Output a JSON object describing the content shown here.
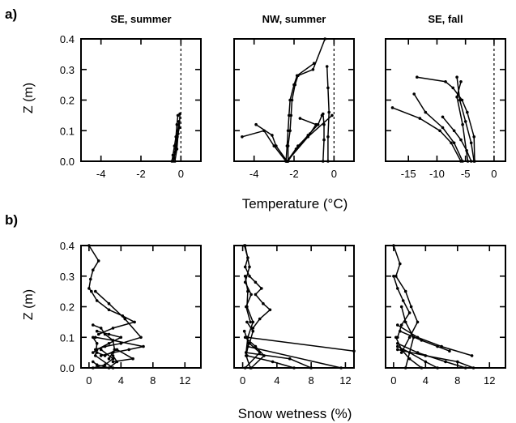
{
  "row_labels": [
    "a)",
    "b)"
  ],
  "y_axis_label": "Z (m)",
  "chart_data": [
    {
      "type": "line",
      "row": "a",
      "title": "SE, summer",
      "xlabel": "",
      "ylabel": "Z (m)",
      "xlim": [
        -5,
        1
      ],
      "ylim": [
        0,
        0.4
      ],
      "xticks": [
        -4,
        -2,
        0
      ],
      "yticks": [
        0.0,
        0.1,
        0.2,
        0.3,
        0.4
      ],
      "zero_line": true,
      "series": [
        {
          "x": [
            -0.45,
            -0.4,
            -0.32,
            -0.25,
            -0.2,
            -0.15
          ],
          "y": [
            0.0,
            0.02,
            0.05,
            0.08,
            0.12,
            0.15
          ]
        },
        {
          "x": [
            -0.38,
            -0.3,
            -0.22,
            -0.16,
            -0.1
          ],
          "y": [
            0.0,
            0.03,
            0.07,
            0.1,
            0.13
          ]
        },
        {
          "x": [
            -0.35,
            -0.25,
            -0.18,
            -0.08,
            -0.05
          ],
          "y": [
            0.01,
            0.04,
            0.08,
            0.11,
            0.155
          ]
        },
        {
          "x": [
            -0.3,
            -0.2,
            -0.14
          ],
          "y": [
            0.0,
            0.04,
            0.09
          ]
        }
      ]
    },
    {
      "type": "line",
      "row": "a",
      "title": "NW, summer",
      "xlabel": "",
      "ylabel": "",
      "xlim": [
        -5,
        1
      ],
      "ylim": [
        0,
        0.4
      ],
      "xticks": [
        -4,
        -2,
        0
      ],
      "yticks": [
        0.0,
        0.1,
        0.2,
        0.3,
        0.4
      ],
      "zero_line": true,
      "series": [
        {
          "x": [
            -2.3,
            -2.3,
            -2.2,
            -2.15,
            -2.1,
            -1.95,
            -1.8,
            -1.05,
            -0.45
          ],
          "y": [
            0.0,
            0.05,
            0.1,
            0.15,
            0.2,
            0.25,
            0.28,
            0.3,
            0.4
          ]
        },
        {
          "x": [
            -2.4,
            -2.35,
            -2.3,
            -2.25,
            -2.2,
            -2.0,
            -1.85,
            -1.0
          ],
          "y": [
            0.0,
            0.05,
            0.1,
            0.15,
            0.2,
            0.25,
            0.28,
            0.32
          ]
        },
        {
          "x": [
            -2.4,
            -3.0,
            -3.5,
            -4.6
          ],
          "y": [
            0.0,
            0.05,
            0.1,
            0.08
          ]
        },
        {
          "x": [
            -2.35,
            -2.9,
            -3.1,
            -3.9
          ],
          "y": [
            0.0,
            0.05,
            0.085,
            0.12
          ]
        },
        {
          "x": [
            -2.3,
            -1.9,
            -1.3,
            -0.8,
            -0.6
          ],
          "y": [
            0.0,
            0.04,
            0.085,
            0.12,
            0.15
          ]
        },
        {
          "x": [
            -2.35,
            -1.8,
            -1.2,
            -0.9,
            -1.7
          ],
          "y": [
            0.0,
            0.05,
            0.09,
            0.12,
            0.14
          ]
        },
        {
          "x": [
            -0.3,
            -0.3,
            -0.25,
            -0.3,
            -0.35
          ],
          "y": [
            0.0,
            0.08,
            0.16,
            0.24,
            0.31
          ]
        },
        {
          "x": [
            -0.55,
            -0.5,
            -0.5,
            -0.55
          ],
          "y": [
            0.0,
            0.07,
            0.12,
            0.155
          ]
        },
        {
          "x": [
            -2.35,
            -1.3,
            -0.1
          ],
          "y": [
            0.0,
            0.08,
            0.15
          ]
        }
      ]
    },
    {
      "type": "line",
      "row": "a",
      "title": "SE, fall",
      "xlabel": "",
      "ylabel": "",
      "xlim": [
        -19,
        2
      ],
      "ylim": [
        0,
        0.4
      ],
      "xticks": [
        -15,
        -10,
        -5,
        0
      ],
      "yticks": [
        0.0,
        0.1,
        0.2,
        0.3,
        0.4
      ],
      "zero_line": true,
      "series": [
        {
          "x": [
            -13.5,
            -8.5,
            -7.2,
            -5.6,
            -4.7,
            -3.5,
            -3.4
          ],
          "y": [
            0.275,
            0.26,
            0.24,
            0.2,
            0.16,
            0.08,
            0.0
          ]
        },
        {
          "x": [
            -14.0,
            -12.0,
            -9.0,
            -7.0,
            -5.5
          ],
          "y": [
            0.22,
            0.16,
            0.11,
            0.06,
            0.0
          ]
        },
        {
          "x": [
            -17.8,
            -13.0,
            -9.5,
            -7.5,
            -5.8
          ],
          "y": [
            0.175,
            0.14,
            0.1,
            0.06,
            0.0
          ]
        },
        {
          "x": [
            -9.0,
            -7.0,
            -5.8,
            -4.8,
            -4.0
          ],
          "y": [
            0.145,
            0.1,
            0.07,
            0.035,
            0.0
          ]
        },
        {
          "x": [
            -6.5,
            -6.0,
            -5.0,
            -4.0,
            -3.5
          ],
          "y": [
            0.275,
            0.2,
            0.13,
            0.06,
            0.0
          ]
        },
        {
          "x": [
            -5.8,
            -6.5,
            -5.5,
            -4.6
          ],
          "y": [
            0.26,
            0.21,
            0.12,
            0.0
          ]
        }
      ]
    },
    {
      "type": "line",
      "row": "b",
      "title": "",
      "xlabel": "",
      "ylabel": "Z (m)",
      "xlim": [
        -1,
        14
      ],
      "ylim": [
        0,
        0.4
      ],
      "xticks": [
        0,
        4,
        8,
        12
      ],
      "yticks": [
        0.0,
        0.1,
        0.2,
        0.3,
        0.4
      ],
      "zero_line": false,
      "series": [
        {
          "x": [
            0.0,
            1.2,
            0.5,
            0.2,
            0.0,
            0.3,
            1.0,
            2.5,
            4.2,
            5.7,
            3.0,
            1.2
          ],
          "y": [
            0.4,
            0.35,
            0.32,
            0.29,
            0.26,
            0.25,
            0.22,
            0.19,
            0.17,
            0.15,
            0.13,
            0.11
          ]
        },
        {
          "x": [
            0.8,
            2.5,
            4.5,
            6.5,
            4.0,
            2.0,
            0.8
          ],
          "y": [
            0.25,
            0.21,
            0.16,
            0.1,
            0.08,
            0.07,
            0.06
          ]
        },
        {
          "x": [
            0.5,
            1.5,
            2.0,
            3.0,
            3.2,
            2.5
          ],
          "y": [
            0.14,
            0.13,
            0.11,
            0.09,
            0.06,
            0.03
          ]
        },
        {
          "x": [
            1.0,
            2.5,
            4.0,
            2.5,
            1.0,
            0.5
          ],
          "y": [
            0.12,
            0.11,
            0.1,
            0.08,
            0.06,
            0.05
          ]
        },
        {
          "x": [
            0.8,
            3.0,
            6.8,
            5.0,
            3.0,
            1.5
          ],
          "y": [
            0.1,
            0.09,
            0.07,
            0.06,
            0.05,
            0.04
          ]
        },
        {
          "x": [
            1.0,
            2.0,
            3.5,
            5.5,
            3.0
          ],
          "y": [
            0.05,
            0.04,
            0.06,
            0.03,
            0.02
          ]
        },
        {
          "x": [
            1.5,
            3.0,
            2.0,
            0.5
          ],
          "y": [
            0.06,
            0.03,
            0.01,
            0.0
          ]
        },
        {
          "x": [
            0.5,
            1.0,
            2.5,
            3.5,
            3.0
          ],
          "y": [
            0.02,
            0.01,
            0.0,
            0.02,
            0.04
          ]
        },
        {
          "x": [
            0.5,
            1.0,
            0.8,
            3.0
          ],
          "y": [
            0.1,
            0.08,
            0.04,
            0.0
          ]
        }
      ]
    },
    {
      "type": "line",
      "row": "b",
      "title": "",
      "xlabel": "",
      "ylabel": "",
      "xlim": [
        -1,
        13
      ],
      "ylim": [
        0,
        0.4
      ],
      "xticks": [
        0,
        4,
        8,
        12
      ],
      "yticks": [
        0.0,
        0.1,
        0.2,
        0.3,
        0.4
      ],
      "zero_line": false,
      "series": [
        {
          "x": [
            0.2,
            0.6,
            0.3,
            0.8,
            1.5,
            2.2,
            1.5,
            2.4,
            3.2,
            2.0,
            1.2
          ],
          "y": [
            0.4,
            0.36,
            0.33,
            0.3,
            0.28,
            0.26,
            0.24,
            0.21,
            0.19,
            0.16,
            0.13
          ]
        },
        {
          "x": [
            0.3,
            0.8,
            0.3,
            1.0,
            0.4,
            0.9
          ],
          "y": [
            0.4,
            0.33,
            0.28,
            0.24,
            0.2,
            0.15
          ]
        },
        {
          "x": [
            0.3,
            0.6,
            0.5,
            1.2,
            0.6,
            0.4
          ],
          "y": [
            0.3,
            0.25,
            0.2,
            0.15,
            0.1,
            0.05
          ]
        },
        {
          "x": [
            0.5,
            13.0
          ],
          "y": [
            0.1,
            0.055
          ]
        },
        {
          "x": [
            0.6,
            11.5
          ],
          "y": [
            0.07,
            0.0
          ]
        },
        {
          "x": [
            0.4,
            5.5,
            8.0
          ],
          "y": [
            0.05,
            0.03,
            0.0
          ]
        },
        {
          "x": [
            0.5,
            3.5,
            6.0
          ],
          "y": [
            0.04,
            0.02,
            0.0
          ]
        },
        {
          "x": [
            0.3,
            1.5,
            2.5,
            1.0
          ],
          "y": [
            0.1,
            0.07,
            0.04,
            0.0
          ]
        },
        {
          "x": [
            0.5,
            1.2,
            0.8,
            2.0,
            0.3
          ],
          "y": [
            0.15,
            0.12,
            0.08,
            0.05,
            0.0
          ]
        },
        {
          "x": [
            0.2,
            0.7,
            0.4,
            0.9
          ],
          "y": [
            0.12,
            0.08,
            0.04,
            0.0
          ]
        }
      ]
    },
    {
      "type": "line",
      "row": "b",
      "title": "",
      "xlabel": "",
      "ylabel": "",
      "xlim": [
        -1,
        14
      ],
      "ylim": [
        0,
        0.4
      ],
      "xticks": [
        0,
        4,
        8,
        12
      ],
      "yticks": [
        0.0,
        0.1,
        0.2,
        0.3,
        0.4
      ],
      "zero_line": false,
      "series": [
        {
          "x": [
            0.0,
            0.8,
            0.3,
            1.5,
            2.2,
            3.0,
            2.0,
            1.0
          ],
          "y": [
            0.4,
            0.34,
            0.3,
            0.25,
            0.2,
            0.15,
            0.1,
            0.05
          ]
        },
        {
          "x": [
            0.0,
            0.5,
            1.2,
            2.0,
            1.0,
            0.5
          ],
          "y": [
            0.3,
            0.26,
            0.22,
            0.18,
            0.14,
            0.1
          ]
        },
        {
          "x": [
            0.5,
            3.0,
            6.0,
            9.8
          ],
          "y": [
            0.14,
            0.1,
            0.07,
            0.04
          ]
        },
        {
          "x": [
            0.8,
            3.5,
            5.5,
            7.0
          ],
          "y": [
            0.12,
            0.09,
            0.07,
            0.055
          ]
        },
        {
          "x": [
            0.5,
            4.0,
            8.0,
            10.0
          ],
          "y": [
            0.06,
            0.04,
            0.02,
            0.0
          ]
        },
        {
          "x": [
            0.5,
            3.0,
            6.5,
            9.0
          ],
          "y": [
            0.08,
            0.05,
            0.02,
            0.0
          ]
        },
        {
          "x": [
            0.5,
            2.0,
            4.0,
            5.5
          ],
          "y": [
            0.07,
            0.05,
            0.02,
            0.0
          ]
        },
        {
          "x": [
            1.0,
            1.5,
            2.5,
            1.5
          ],
          "y": [
            0.2,
            0.15,
            0.1,
            0.0
          ]
        },
        {
          "x": [
            0.3,
            1.0,
            2.0,
            3.5
          ],
          "y": [
            0.1,
            0.06,
            0.03,
            0.0
          ]
        }
      ]
    }
  ],
  "x_axis_labels": {
    "row_a": "Temperature (°C)",
    "row_b": "Snow wetness (%)"
  }
}
